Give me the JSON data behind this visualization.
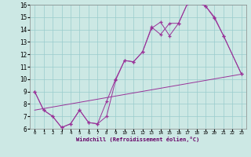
{
  "bg_color": "#cce8e4",
  "grid_color": "#99cccc",
  "line_color": "#993399",
  "xlim": [
    -0.5,
    23.5
  ],
  "ylim": [
    6,
    16
  ],
  "xticks": [
    0,
    1,
    2,
    3,
    4,
    5,
    6,
    7,
    8,
    9,
    10,
    11,
    12,
    13,
    14,
    15,
    16,
    17,
    18,
    19,
    20,
    21,
    22,
    23
  ],
  "yticks": [
    6,
    7,
    8,
    9,
    10,
    11,
    12,
    13,
    14,
    15,
    16
  ],
  "xlabel": "Windchill (Refroidissement éolien,°C)",
  "series1_x": [
    0,
    1,
    2,
    3,
    4,
    5,
    6,
    7,
    8,
    9,
    10,
    11,
    12,
    13,
    14,
    15,
    16,
    17,
    18,
    19,
    20,
    21,
    23
  ],
  "series1_y": [
    9.0,
    7.5,
    7.0,
    6.1,
    6.4,
    7.5,
    6.5,
    6.4,
    7.0,
    9.9,
    11.5,
    11.4,
    12.2,
    14.1,
    14.6,
    13.5,
    14.5,
    16.1,
    16.2,
    15.9,
    15.0,
    13.5,
    10.4
  ],
  "series2_x": [
    0,
    1,
    2,
    3,
    4,
    5,
    6,
    7,
    8,
    9,
    10,
    11,
    12,
    13,
    14,
    15,
    16,
    17,
    18,
    19,
    20,
    21,
    23
  ],
  "series2_y": [
    9.0,
    7.5,
    7.0,
    6.1,
    6.4,
    7.5,
    6.5,
    6.4,
    8.2,
    10.0,
    11.5,
    11.4,
    12.2,
    14.2,
    13.6,
    14.5,
    14.5,
    16.1,
    16.2,
    15.9,
    14.9,
    13.5,
    10.4
  ],
  "series3_x": [
    0,
    23
  ],
  "series3_y": [
    7.5,
    10.4
  ],
  "figsize": [
    3.2,
    2.0
  ],
  "dpi": 100
}
